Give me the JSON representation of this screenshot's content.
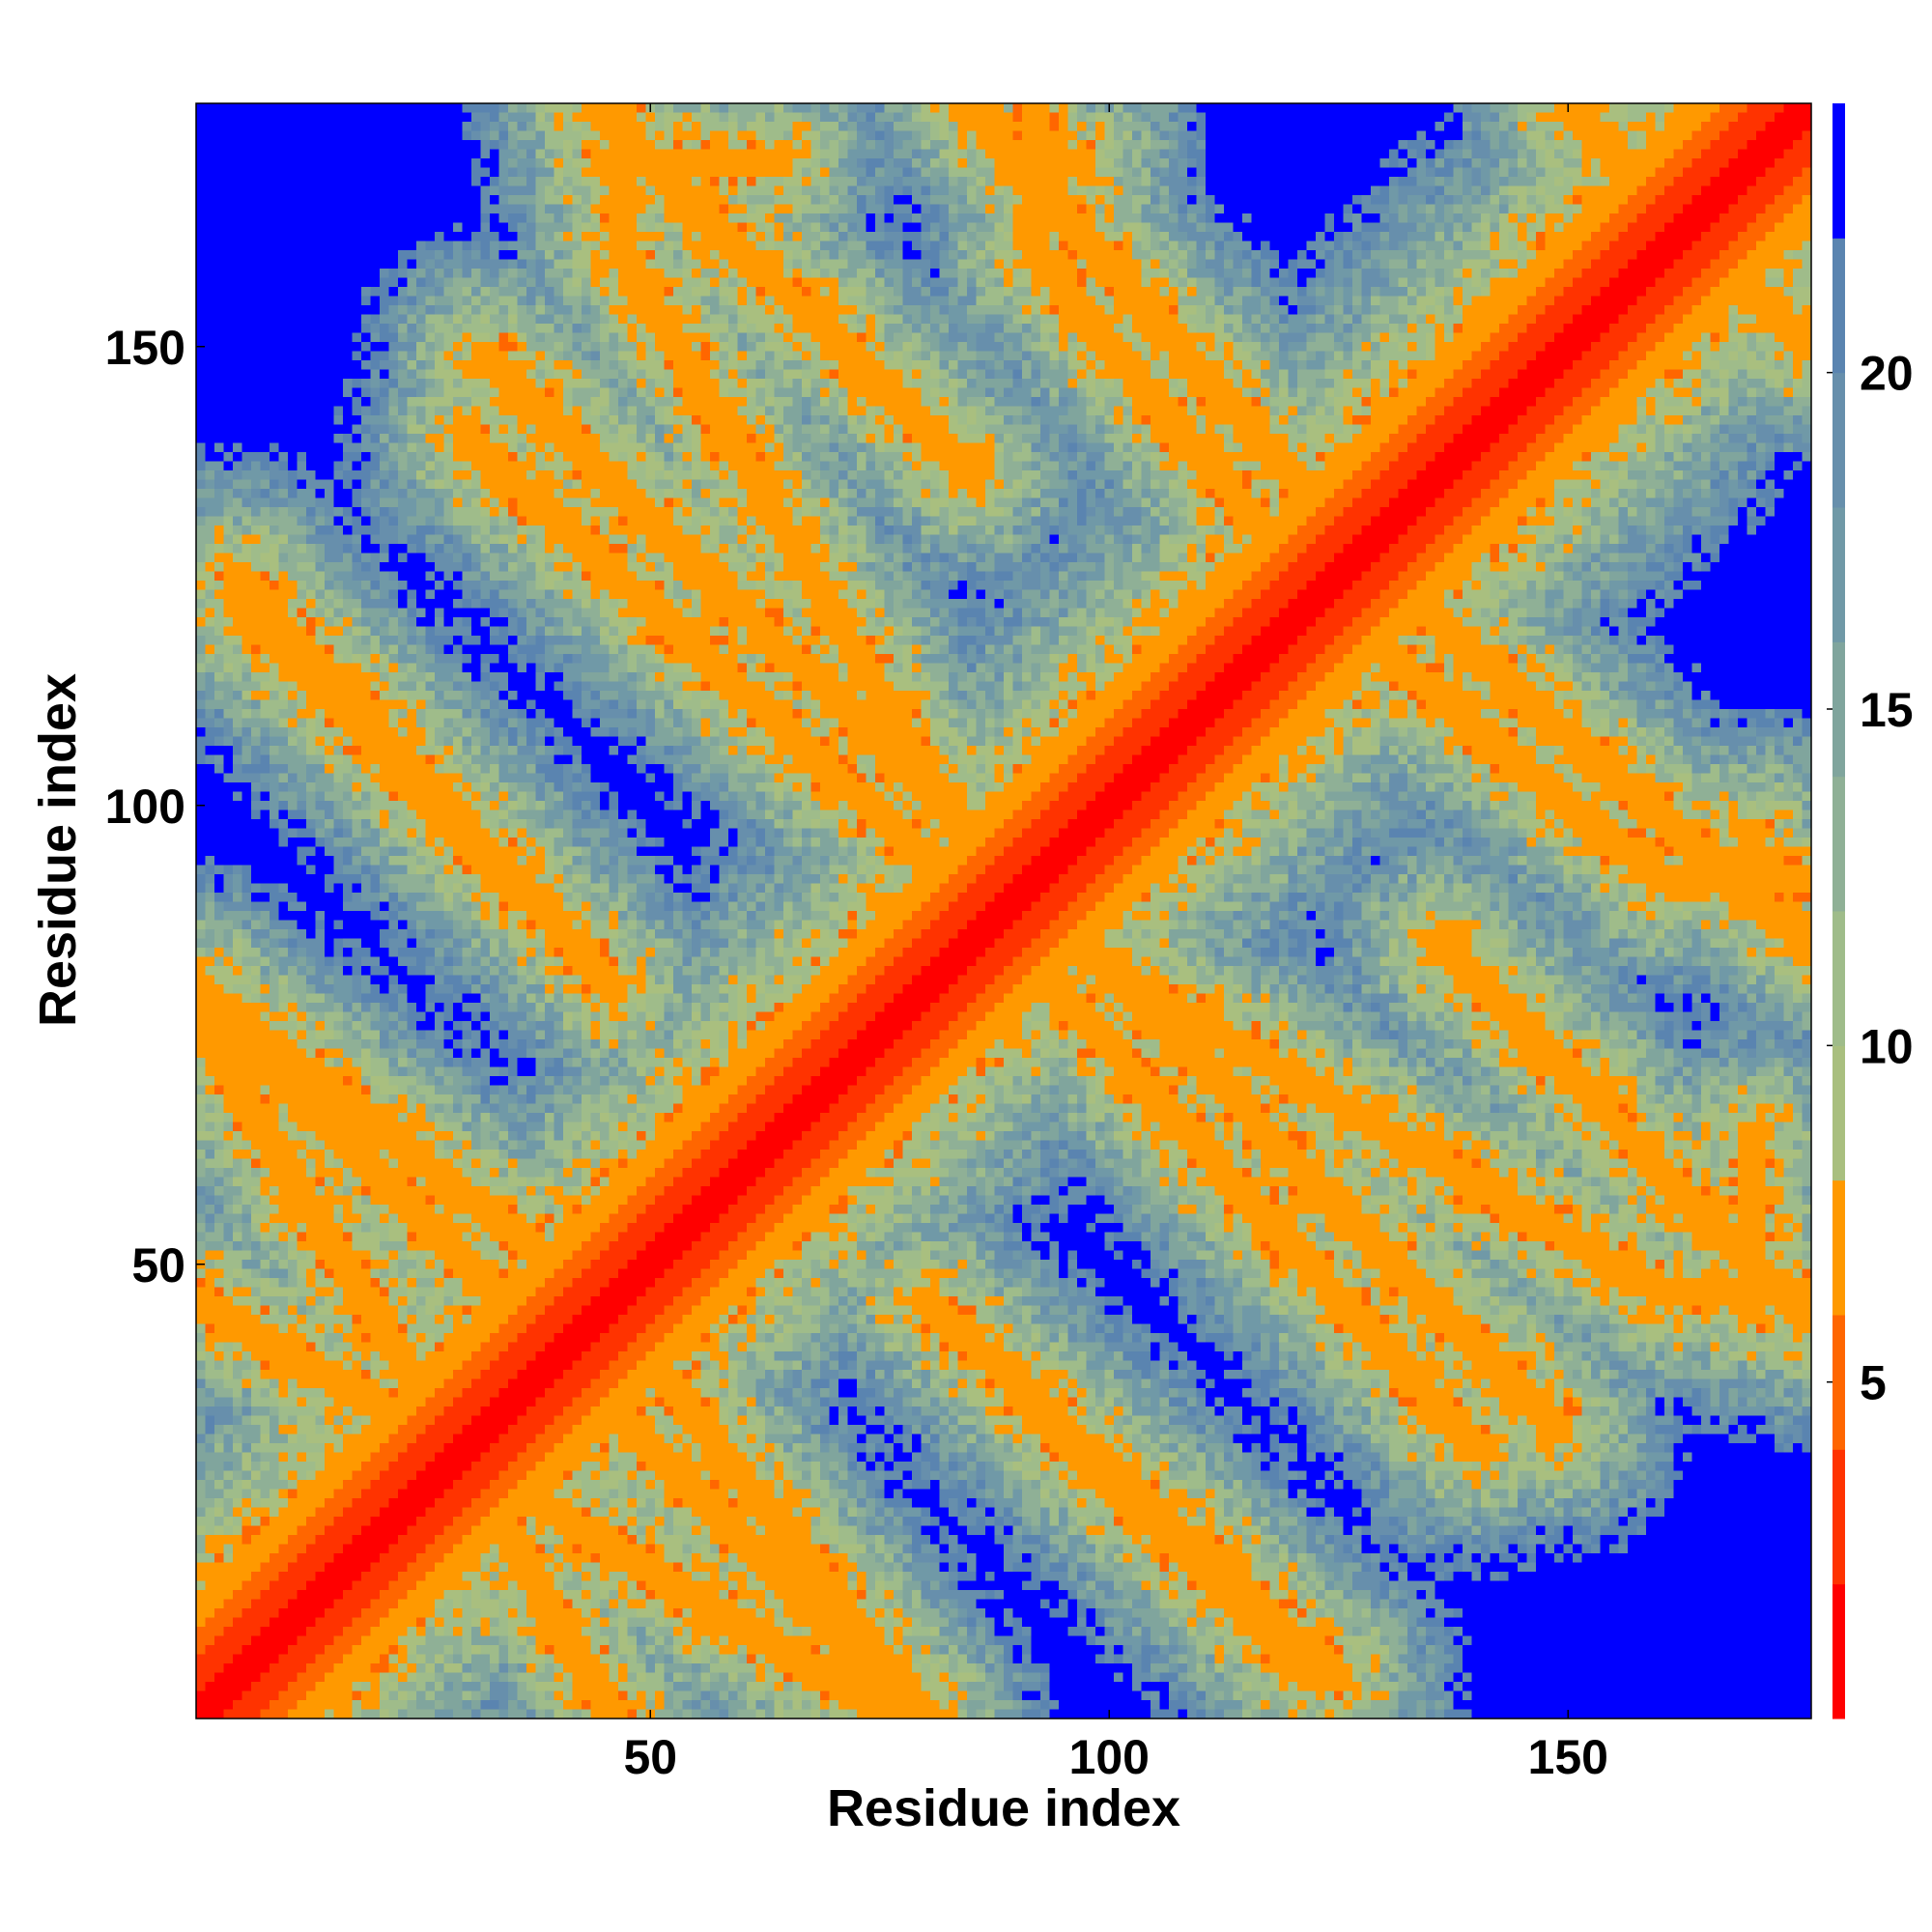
{
  "chart_data": {
    "type": "heatmap",
    "title": "",
    "xlabel": "Residue index",
    "ylabel": "Residue index",
    "xlim": [
      1,
      176
    ],
    "ylim": [
      1,
      176
    ],
    "x_ticks": [
      50,
      100,
      150
    ],
    "y_ticks": [
      50,
      100,
      150
    ],
    "x_tick_labels": [
      "50",
      "100",
      "150"
    ],
    "y_tick_labels": [
      "50",
      "100",
      "150"
    ],
    "n_residues": 176,
    "colorbar": {
      "range": [
        0,
        24
      ],
      "ticks": [
        5,
        10,
        15,
        20
      ],
      "tick_labels": [
        "5",
        "10",
        "15",
        "20"
      ],
      "bins": [
        {
          "from": 0,
          "to": 2,
          "color": "#ff0000"
        },
        {
          "from": 2,
          "to": 4,
          "color": "#ff3300"
        },
        {
          "from": 4,
          "to": 6,
          "color": "#ff6600"
        },
        {
          "from": 6,
          "to": 8,
          "color": "#ff9900"
        },
        {
          "from": 8,
          "to": 10,
          "color": "#a9bf7f"
        },
        {
          "from": 10,
          "to": 12,
          "color": "#9fbc8a"
        },
        {
          "from": 12,
          "to": 14,
          "color": "#8fb096"
        },
        {
          "from": 14,
          "to": 16,
          "color": "#80a59d"
        },
        {
          "from": 16,
          "to": 18,
          "color": "#7099a7"
        },
        {
          "from": 18,
          "to": 20,
          "color": "#678fac"
        },
        {
          "from": 20,
          "to": 22,
          "color": "#5a84b0"
        },
        {
          "from": 22,
          "to": 24,
          "color": "#0000ff"
        }
      ]
    },
    "description_of_values": "Symmetric residue-residue distance map; diagonal band near 0 (red), off-diagonal contact bands, background above 22 (blue).",
    "contact_bands": [
      {
        "start": [
          1,
          46
        ],
        "end": [
          76,
          1
        ]
      },
      {
        "start": [
          1,
          80
        ],
        "end": [
          42,
          48
        ]
      },
      {
        "start": [
          44,
          36
        ],
        "end": [
          75,
          5
        ]
      },
      {
        "start": [
          5,
          122
        ],
        "end": [
          36,
          90
        ]
      },
      {
        "start": [
          32,
          149
        ],
        "end": [
          95,
          87
        ]
      },
      {
        "start": [
          44,
          176
        ],
        "end": [
          85,
          136
        ]
      },
      {
        "start": [
          80,
          46
        ],
        "end": [
          125,
          5
        ]
      },
      {
        "start": [
          85,
          90
        ],
        "end": [
          140,
          30
        ]
      },
      {
        "start": [
          85,
          176
        ],
        "end": [
          125,
          130
        ]
      },
      {
        "start": [
          95,
          85
        ],
        "end": [
          160,
          47
        ]
      },
      {
        "start": [
          120,
          125
        ],
        "end": [
          160,
          92
        ]
      },
      {
        "start": [
          150,
          176
        ],
        "end": [
          176,
          150
        ]
      },
      {
        "start": [
          160,
          92
        ],
        "end": [
          176,
          92
        ]
      },
      {
        "start": [
          160,
          47
        ],
        "end": [
          176,
          47
        ]
      },
      {
        "start": [
          45,
          170
        ],
        "end": [
          64,
          170
        ]
      },
      {
        "start": [
          90,
          170
        ],
        "end": [
          97,
          170
        ]
      }
    ]
  }
}
